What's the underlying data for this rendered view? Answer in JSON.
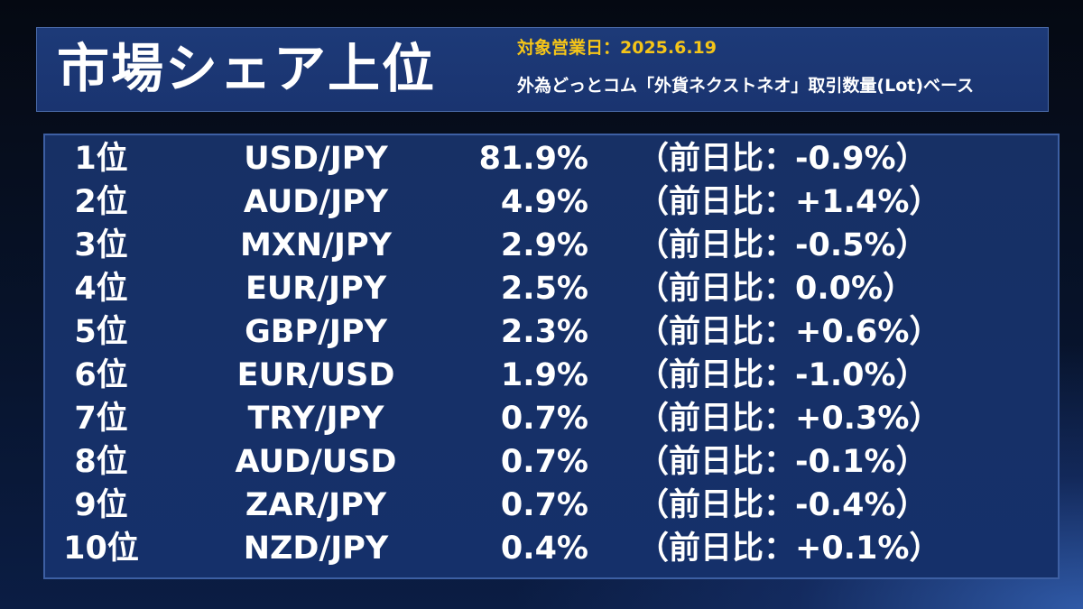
{
  "header": {
    "title": "市場シェア上位",
    "date_label": "対象営業日：",
    "date_value": "2025.6.19",
    "basis": "外為どっとコム「外貨ネクストネオ」取引数量(Lot)ベース"
  },
  "rows": [
    {
      "rank": "1位",
      "pair": "USD/JPY",
      "share": "81.9%",
      "change": "（前日比：-0.9%）"
    },
    {
      "rank": "2位",
      "pair": "AUD/JPY",
      "share": "4.9%",
      "change": "（前日比：+1.4%）"
    },
    {
      "rank": "3位",
      "pair": "MXN/JPY",
      "share": "2.9%",
      "change": "（前日比：-0.5%）"
    },
    {
      "rank": "4位",
      "pair": "EUR/JPY",
      "share": "2.5%",
      "change": "（前日比：0.0%）"
    },
    {
      "rank": "5位",
      "pair": "GBP/JPY",
      "share": "2.3%",
      "change": "（前日比：+0.6%）"
    },
    {
      "rank": "6位",
      "pair": "EUR/USD",
      "share": "1.9%",
      "change": "（前日比：-1.0%）"
    },
    {
      "rank": "7位",
      "pair": "TRY/JPY",
      "share": "0.7%",
      "change": "（前日比：+0.3%）"
    },
    {
      "rank": "8位",
      "pair": "AUD/USD",
      "share": "0.7%",
      "change": "（前日比：-0.1%）"
    },
    {
      "rank": "9位",
      "pair": "ZAR/JPY",
      "share": "0.7%",
      "change": "（前日比：-0.4%）"
    },
    {
      "rank": "10位",
      "pair": "NZD/JPY",
      "share": "0.4%",
      "change": "（前日比：+0.1%）"
    }
  ],
  "colors": {
    "accent_date": "#f5c518",
    "panel_bg": "#173065",
    "border": "#3d5fa3"
  }
}
